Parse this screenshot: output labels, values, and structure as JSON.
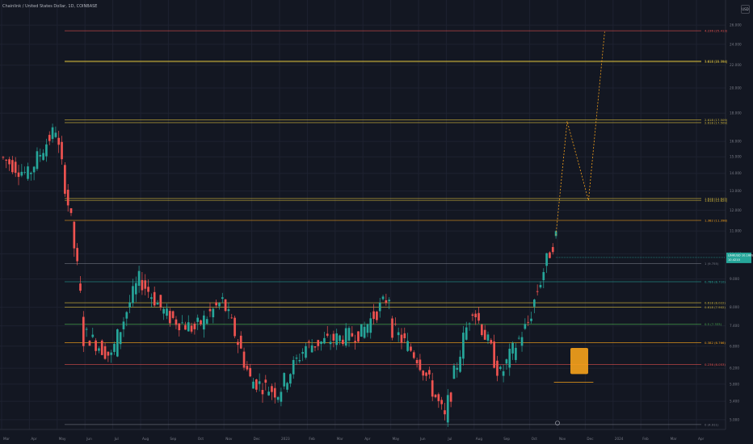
{
  "header": {
    "title": "Chainlink / United States Dollar, 1D, COINBASE"
  },
  "currency": "USD",
  "price_tag": {
    "line1": "LINKUSD",
    "line2": "10.1609",
    "line3": "10.4210",
    "color": "#26a69a"
  },
  "chart_data": {
    "type": "candlestick",
    "xlabel": "",
    "ylabel": "",
    "x_ticks": [
      "Mar",
      "Apr",
      "May",
      "Jun",
      "Jul",
      "Aug",
      "Sep",
      "Oct",
      "Nov",
      "Dec",
      "2023",
      "Feb",
      "Mar",
      "Apr",
      "May",
      "Jun",
      "Jul",
      "Aug",
      "Sep",
      "Oct",
      "Nov",
      "Dec",
      "2024",
      "Feb",
      "Mar",
      "Apr"
    ],
    "y_ticks": [
      "26.000",
      "24.000",
      "22.000",
      "20.000",
      "18.000",
      "16.000",
      "15.000",
      "14.000",
      "13.000",
      "12.000",
      "11.000",
      "10.000",
      "9.000",
      "8.000",
      "7.400",
      "6.800",
      "6.200",
      "5.800",
      "5.400",
      "5.000"
    ],
    "ylim": [
      4.8,
      27.0
    ],
    "scale": "log",
    "grid": true,
    "colors": {
      "up": "#26a69a",
      "down": "#ef5350"
    },
    "overview": [
      {
        "month": "Mar",
        "open": 15.0,
        "close": 13.9
      },
      {
        "month": "Apr",
        "open": 13.9,
        "close": 16.9
      },
      {
        "month": "May",
        "open": 16.5,
        "close": 7.2
      },
      {
        "month": "Jun",
        "open": 7.2,
        "close": 6.5
      },
      {
        "month": "Jul",
        "open": 6.5,
        "close": 9.0
      },
      {
        "month": "Aug",
        "open": 9.0,
        "close": 7.7
      },
      {
        "month": "Sep",
        "open": 7.7,
        "close": 7.3
      },
      {
        "month": "Oct",
        "open": 7.3,
        "close": 8.2
      },
      {
        "month": "Nov",
        "open": 8.2,
        "close": 5.9
      },
      {
        "month": "Dec",
        "open": 5.9,
        "close": 5.6
      },
      {
        "month": "2023",
        "open": 5.6,
        "close": 6.8
      },
      {
        "month": "Feb",
        "open": 6.8,
        "close": 7.0
      },
      {
        "month": "Mar",
        "open": 7.0,
        "close": 7.2
      },
      {
        "month": "Apr",
        "open": 7.2,
        "close": 8.4
      },
      {
        "month": "May",
        "open": 7.4,
        "close": 6.5
      },
      {
        "month": "Jun",
        "open": 6.5,
        "close": 5.0
      },
      {
        "month": "Jul",
        "open": 5.0,
        "close": 8.0
      },
      {
        "month": "Aug",
        "open": 8.0,
        "close": 6.0
      },
      {
        "month": "Sep",
        "open": 6.0,
        "close": 7.5
      },
      {
        "month": "Oct",
        "open": 7.5,
        "close": 10.8
      }
    ],
    "fib_levels": [
      {
        "label": "4.236 (25.413)",
        "value": 25.4,
        "color": "#ef5350"
      },
      {
        "label": "3.618 (22.394)",
        "value": 22.4,
        "color": "#cfb53b"
      },
      {
        "label": "3.618 (22.394)",
        "value": 22.3,
        "color": "#cfb53b"
      },
      {
        "label": "2.618 (17.509)",
        "value": 17.5,
        "color": "#cfb53b"
      },
      {
        "label": "2.618 (17.509)",
        "value": 17.3,
        "color": "#cfb53b"
      },
      {
        "label": "1.618 (12.625)",
        "value": 12.6,
        "color": "#cfb53b"
      },
      {
        "label": "1.618 (12.625)",
        "value": 12.5,
        "color": "#cfb53b"
      },
      {
        "label": "1.382 (11.398)",
        "value": 11.5,
        "color": "#f7a21b"
      },
      {
        "label": "1 (9.755)",
        "value": 9.6,
        "color": "#787b86"
      },
      {
        "label": "0.786 (8.710)",
        "value": 8.9,
        "color": "#26a69a"
      },
      {
        "label": "0.618 (8.022)",
        "value": 8.15,
        "color": "#cfb53b"
      },
      {
        "label": "0.618 (7.902)",
        "value": 8.0,
        "color": "#cfb53b"
      },
      {
        "label": "0.5 (7.333)",
        "value": 7.45,
        "color": "#4caf50"
      },
      {
        "label": "0.382 (6.766)",
        "value": 6.9,
        "color": "#f7a21b"
      },
      {
        "label": "0.236 (6.053)",
        "value": 6.3,
        "color": "#ef5350"
      },
      {
        "label": "0 (4.911)",
        "value": 4.9,
        "color": "#787b86"
      }
    ],
    "projection_path": [
      {
        "label": "Oct",
        "value": 10.8
      },
      {
        "label": "Nov",
        "value": 17.4
      },
      {
        "label": "Dec",
        "value": 12.5
      },
      {
        "label": "Dec",
        "value": 25.3
      }
    ]
  }
}
